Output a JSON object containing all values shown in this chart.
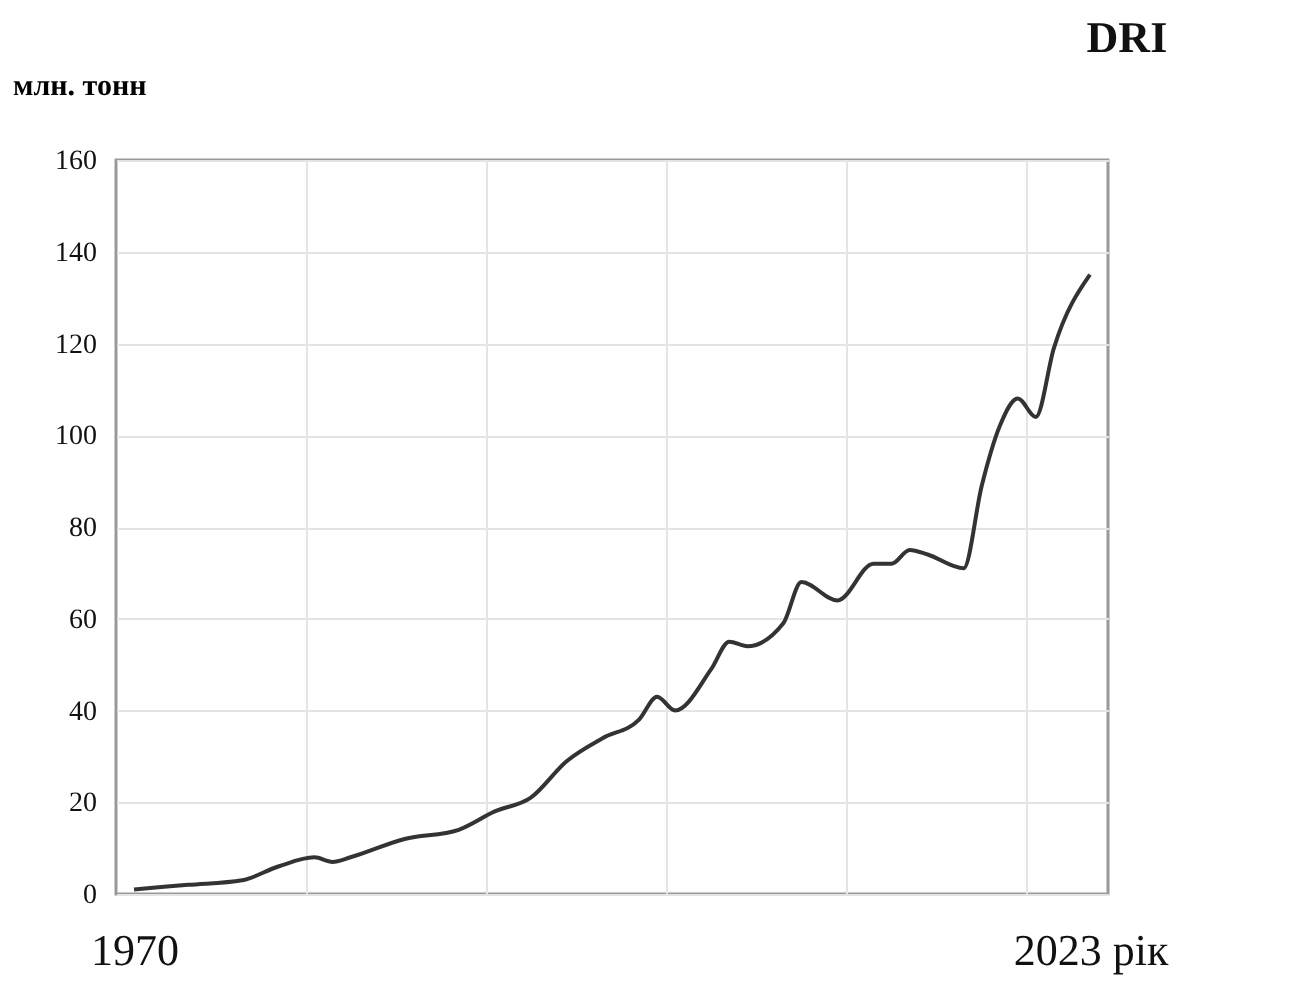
{
  "chart_data": {
    "type": "line",
    "title": "DRI",
    "ylabel": "млн. тонн",
    "x": [
      1970,
      1973,
      1976,
      1978,
      1980,
      1981,
      1982,
      1985,
      1988,
      1990,
      1992,
      1994,
      1996,
      1998,
      1999,
      2000,
      2002,
      2003,
      2004,
      2006,
      2007,
      2009,
      2011,
      2012,
      2013,
      2014,
      2016,
      2017,
      2018,
      2019,
      2020,
      2021,
      2023
    ],
    "series": [
      {
        "color": "#333333",
        "values": [
          1,
          2,
          3,
          6,
          8,
          7,
          8,
          12,
          14,
          18,
          21,
          29,
          34,
          38,
          43,
          40,
          49,
          55,
          54,
          59,
          68,
          64,
          72,
          72,
          75,
          74,
          71,
          89,
          102,
          108,
          104,
          119,
          135
        ]
      }
    ],
    "xlim": [
      1969,
      2024
    ],
    "xticks": [
      {
        "value": 1970,
        "label": "1970"
      },
      {
        "value": 1979.5,
        "label": null
      },
      {
        "value": 1989.5,
        "label": null
      },
      {
        "value": 1999.5,
        "label": null
      },
      {
        "value": 2009.5,
        "label": null
      },
      {
        "value": 2019.5,
        "label": null
      },
      {
        "value": 2023,
        "label": "2023 рік"
      }
    ],
    "ylim": [
      0,
      160
    ],
    "yticks": [
      0,
      20,
      40,
      60,
      80,
      100,
      120,
      140,
      160
    ],
    "grid": true,
    "marker": "none",
    "line_style": "solid"
  }
}
